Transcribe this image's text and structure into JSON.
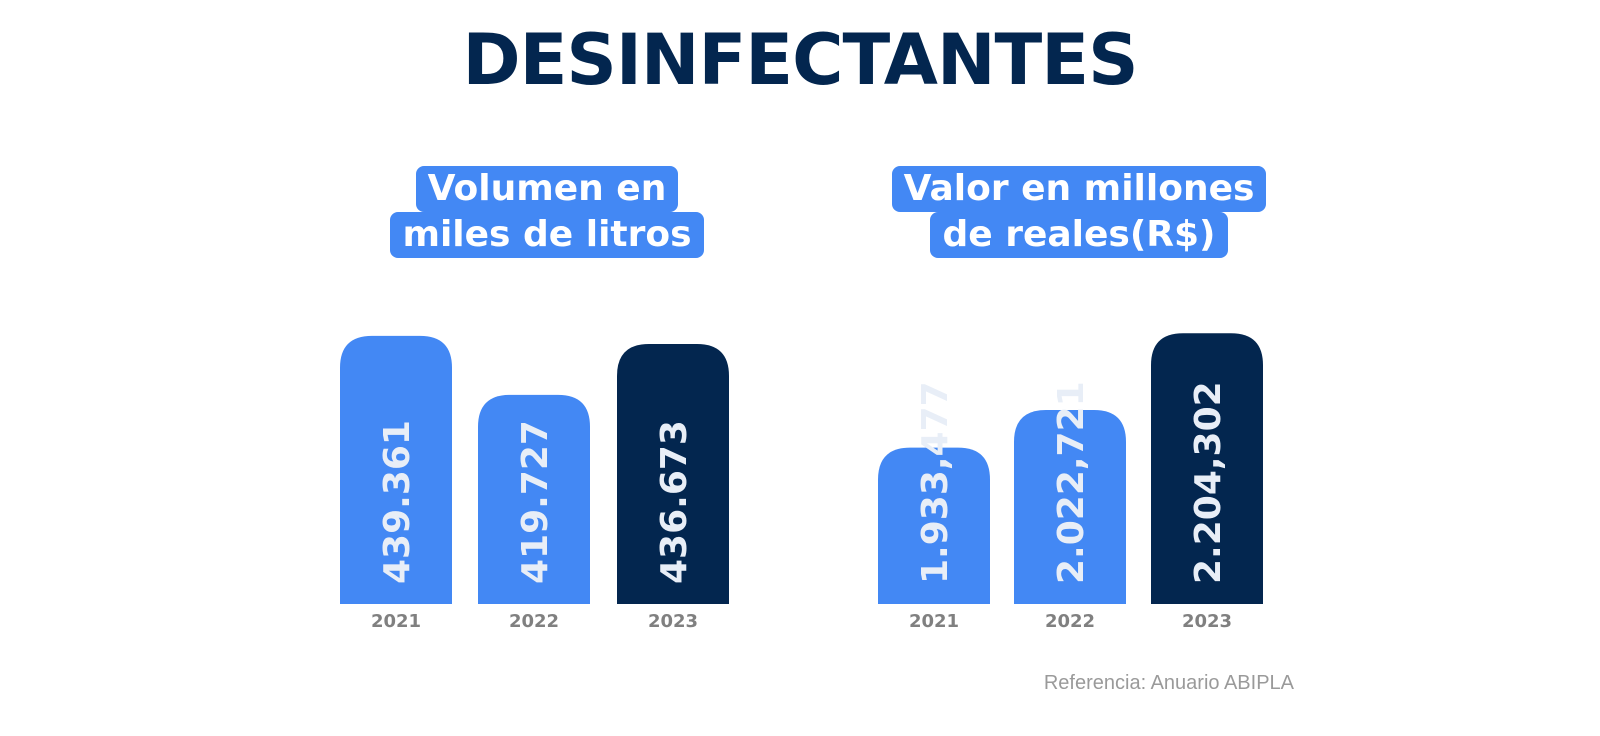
{
  "title": "DESINFECTANTES",
  "source": "Referencia: Anuario ABIPLA",
  "colors": {
    "accent": "#4388f4",
    "highlight": "#03264f",
    "label_text": "#e8eef7",
    "axis_text": "#808080"
  },
  "chart_data": [
    {
      "type": "bar",
      "title_lines": [
        "Volumen en",
        "miles de litros"
      ],
      "categories": [
        "2021",
        "2022",
        "2023"
      ],
      "values": [
        439.361,
        419.727,
        436.673
      ],
      "value_labels": [
        "439.361",
        "419.727",
        "436.673"
      ],
      "highlight_index": 2
    },
    {
      "type": "bar",
      "title_lines": [
        "Valor en millones",
        "de reales(R$)"
      ],
      "categories": [
        "2021",
        "2022",
        "2023"
      ],
      "values": [
        1933.477,
        2022.721,
        2204.302
      ],
      "value_labels": [
        "1.933,477",
        "2.022,721",
        "2.204,302"
      ],
      "highlight_index": 2
    }
  ]
}
